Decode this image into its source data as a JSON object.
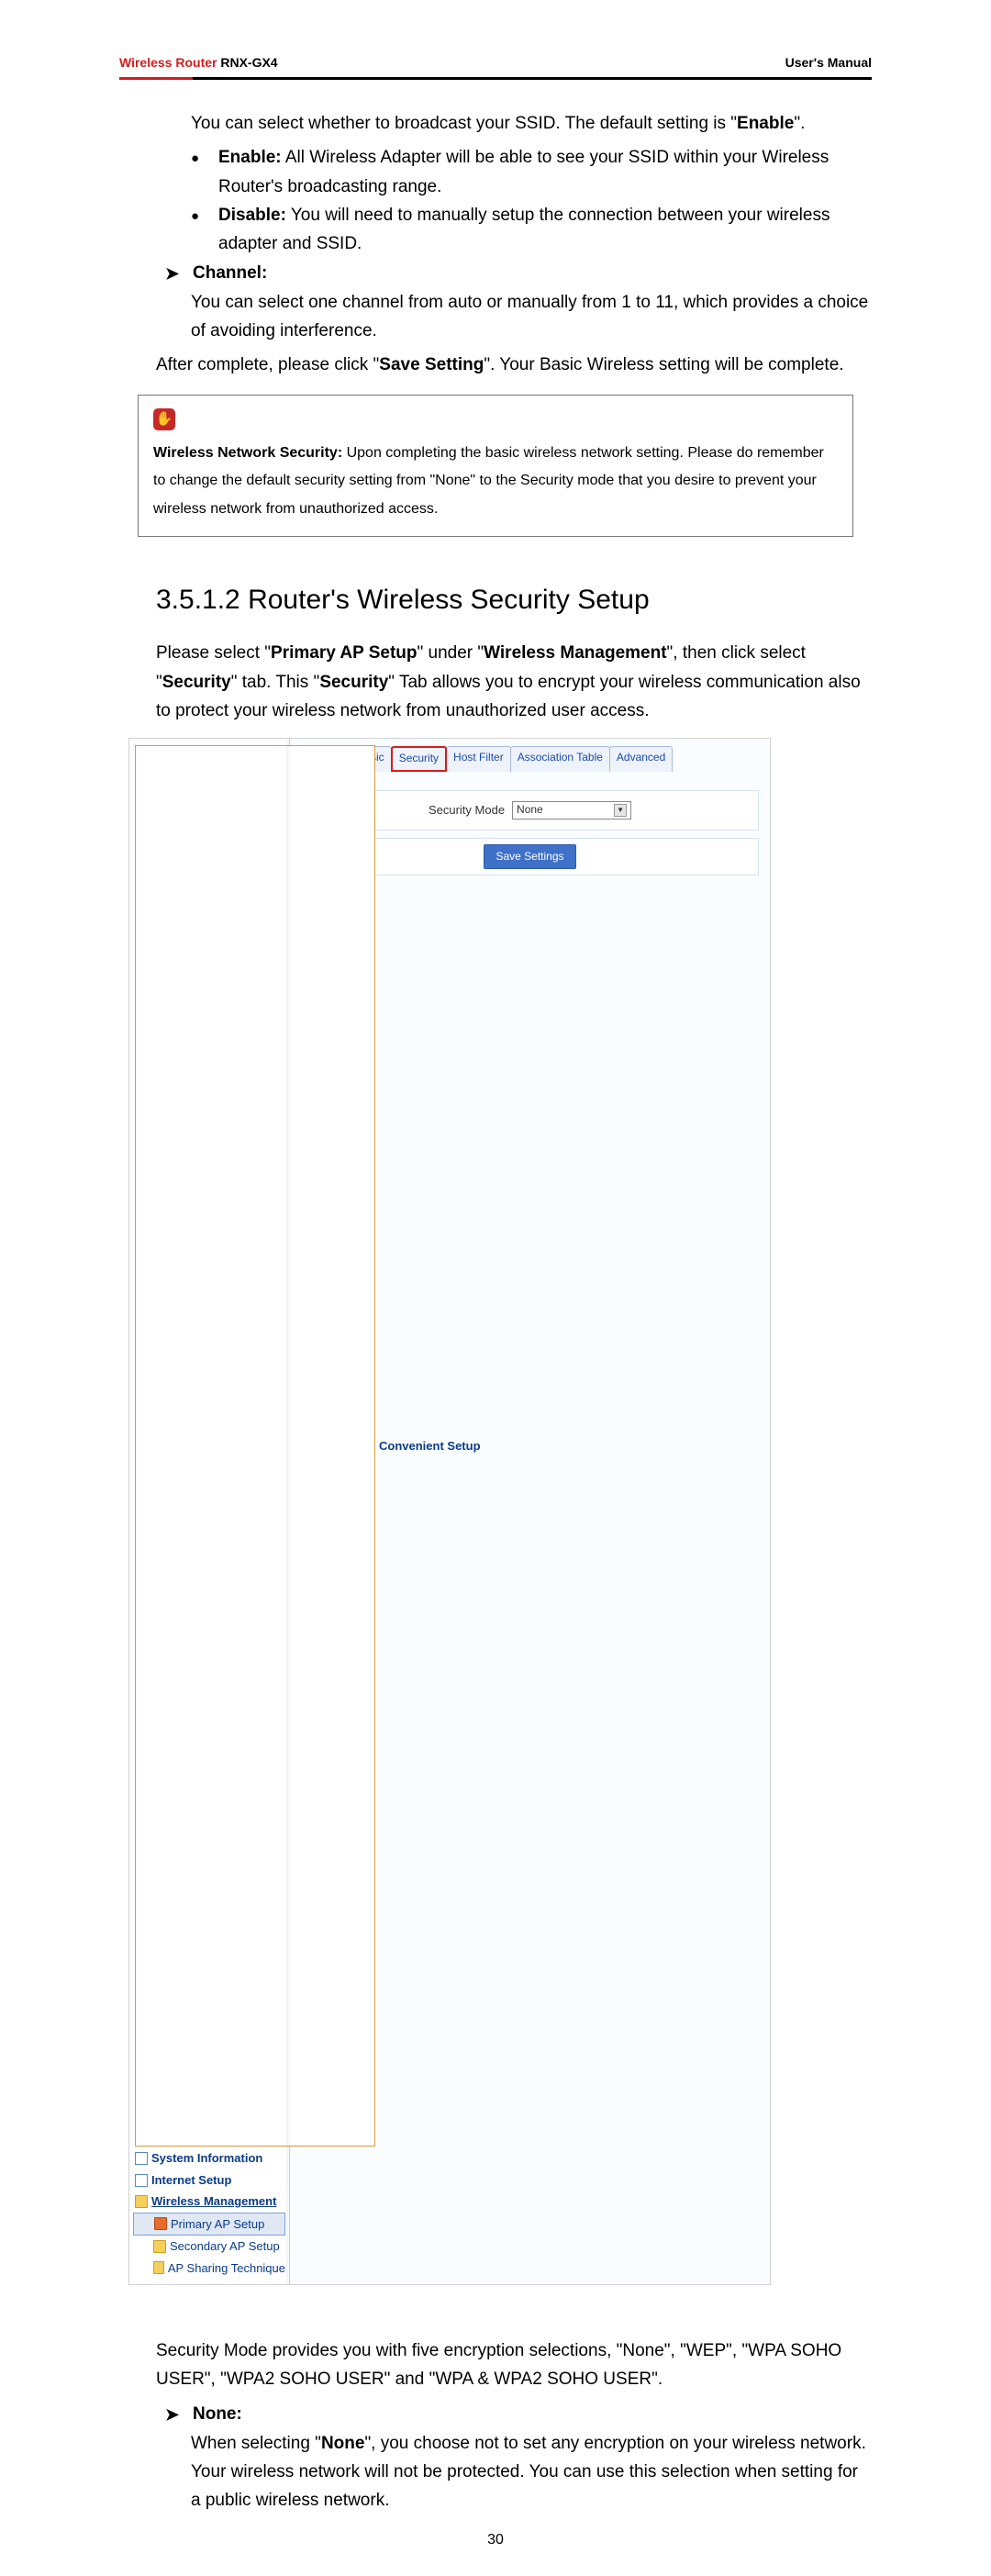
{
  "header": {
    "product": "Wireless Router",
    "model": "RNX-GX4",
    "manual": "User's Manual",
    "rule_accent": "#d41c1c",
    "rule_main": "#000000"
  },
  "intro_para_a": "You can select whether to broadcast your SSID. The default setting is \"",
  "intro_para_b": "Enable",
  "intro_para_c": "\".",
  "bullets": {
    "enable_label": "Enable:",
    "enable_text": " All Wireless Adapter will be able to see your SSID within your Wireless Router's broadcasting range.",
    "disable_label": "Disable:",
    "disable_text": " You will need to manually setup the connection between your wireless adapter and SSID."
  },
  "channel": {
    "heading": "Channel:",
    "text": "You can select one channel from auto or manually from 1 to 11, which provides a choice of avoiding interference."
  },
  "after_a": "After complete, please click \"",
  "after_b": "Save Setting",
  "after_c": "\". Your Basic Wireless setting will be complete.",
  "note": {
    "icon_glyph": "✋",
    "lead": "Wireless Network Security:",
    "text": " Upon completing the basic wireless network setting. Please do remember to change the default security setting from \"None\" to the Security mode that you desire to prevent your wireless network from unauthorized access."
  },
  "section_heading": "3.5.1.2 Router's Wireless Security Setup",
  "sec_para": {
    "a": "Please select \"",
    "b": "Primary AP Setup",
    "c": "\" under \"",
    "d": "Wireless Management",
    "e": "\", then click select \"",
    "f": "Security",
    "g": "\" tab. This \"",
    "h": "Security",
    "i": "\" Tab allows you to encrypt your wireless communication also to protect your wireless network from unauthorized user access."
  },
  "router_ui": {
    "sidebar": [
      {
        "label": "Convenient Setup",
        "bold": true,
        "icon": "page"
      },
      {
        "label": "System Information",
        "bold": true,
        "icon": "page-blue"
      },
      {
        "label": "Internet Setup",
        "bold": true,
        "icon": "page-blue"
      },
      {
        "label": "Wireless Management",
        "bold": true,
        "icon": "folder",
        "underline": true
      },
      {
        "label": "Primary AP Setup",
        "bold": false,
        "icon": "folder-red",
        "sub": true,
        "selected": true
      },
      {
        "label": "Secondary AP Setup",
        "bold": false,
        "icon": "folder",
        "sub": true
      },
      {
        "label": "AP Sharing Technique",
        "bold": false,
        "icon": "folder",
        "sub": true
      }
    ],
    "tabs": [
      "Wireless Basic",
      "Security",
      "Host Filter",
      "Association Table",
      "Advanced"
    ],
    "active_tab_index": 1,
    "tab_border_active": "#d41c1c",
    "security_mode_label": "Security Mode",
    "security_mode_value": "None",
    "save_button_label": "Save Settings",
    "button_bg": "#3f71c8"
  },
  "mode_para": "Security Mode provides you with five encryption selections, \"None\", \"WEP\", \"WPA SOHO USER\", \"WPA2 SOHO USER\" and \"WPA & WPA2 SOHO USER\".",
  "none_section": {
    "heading": "None:",
    "a": "When selecting \"",
    "b": "None",
    "c": "\", you choose not to set any encryption on your wireless network. Your wireless network will not be protected. You can use this selection when setting for a public wireless network."
  },
  "page_number": "30"
}
